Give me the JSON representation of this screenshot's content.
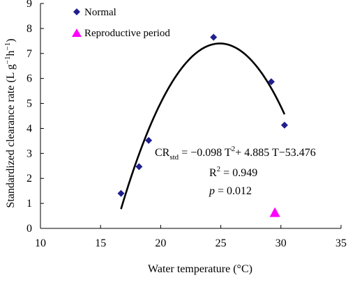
{
  "chart_data": {
    "type": "scatter",
    "xlabel": "Water temperature (°C)",
    "ylabel": "Standardized clearance rate (L g⁻¹h⁻¹)",
    "xlim": [
      10,
      35
    ],
    "ylim": [
      0,
      9
    ],
    "x_ticks": [
      "10",
      "15",
      "20",
      "25",
      "30",
      "35"
    ],
    "y_ticks": [
      "0",
      "1",
      "2",
      "3",
      "4",
      "5",
      "6",
      "7",
      "8",
      "9"
    ],
    "grid": false,
    "legend_position": "top-left",
    "series": [
      {
        "name": "Normal",
        "marker": "diamond",
        "color": "#1F1F8F",
        "points": [
          {
            "x": 16.7,
            "y": 1.4
          },
          {
            "x": 18.2,
            "y": 2.47
          },
          {
            "x": 19.0,
            "y": 3.52
          },
          {
            "x": 24.4,
            "y": 7.65
          },
          {
            "x": 29.2,
            "y": 5.87
          },
          {
            "x": 30.3,
            "y": 4.13
          }
        ]
      },
      {
        "name": "Reproductive period",
        "marker": "triangle",
        "color": "#FF00FF",
        "points": [
          {
            "x": 29.5,
            "y": 0.65
          }
        ]
      }
    ],
    "fit_curve": {
      "a": -0.098,
      "b": 4.885,
      "c": -53.476,
      "x_range": [
        16.7,
        30.3
      ],
      "color": "#000000"
    },
    "annotations": {
      "equation": "CRstd = −0.098 T² + 4.885 T−53.476",
      "r2": "R² = 0.949",
      "p": "p = 0.012"
    }
  }
}
